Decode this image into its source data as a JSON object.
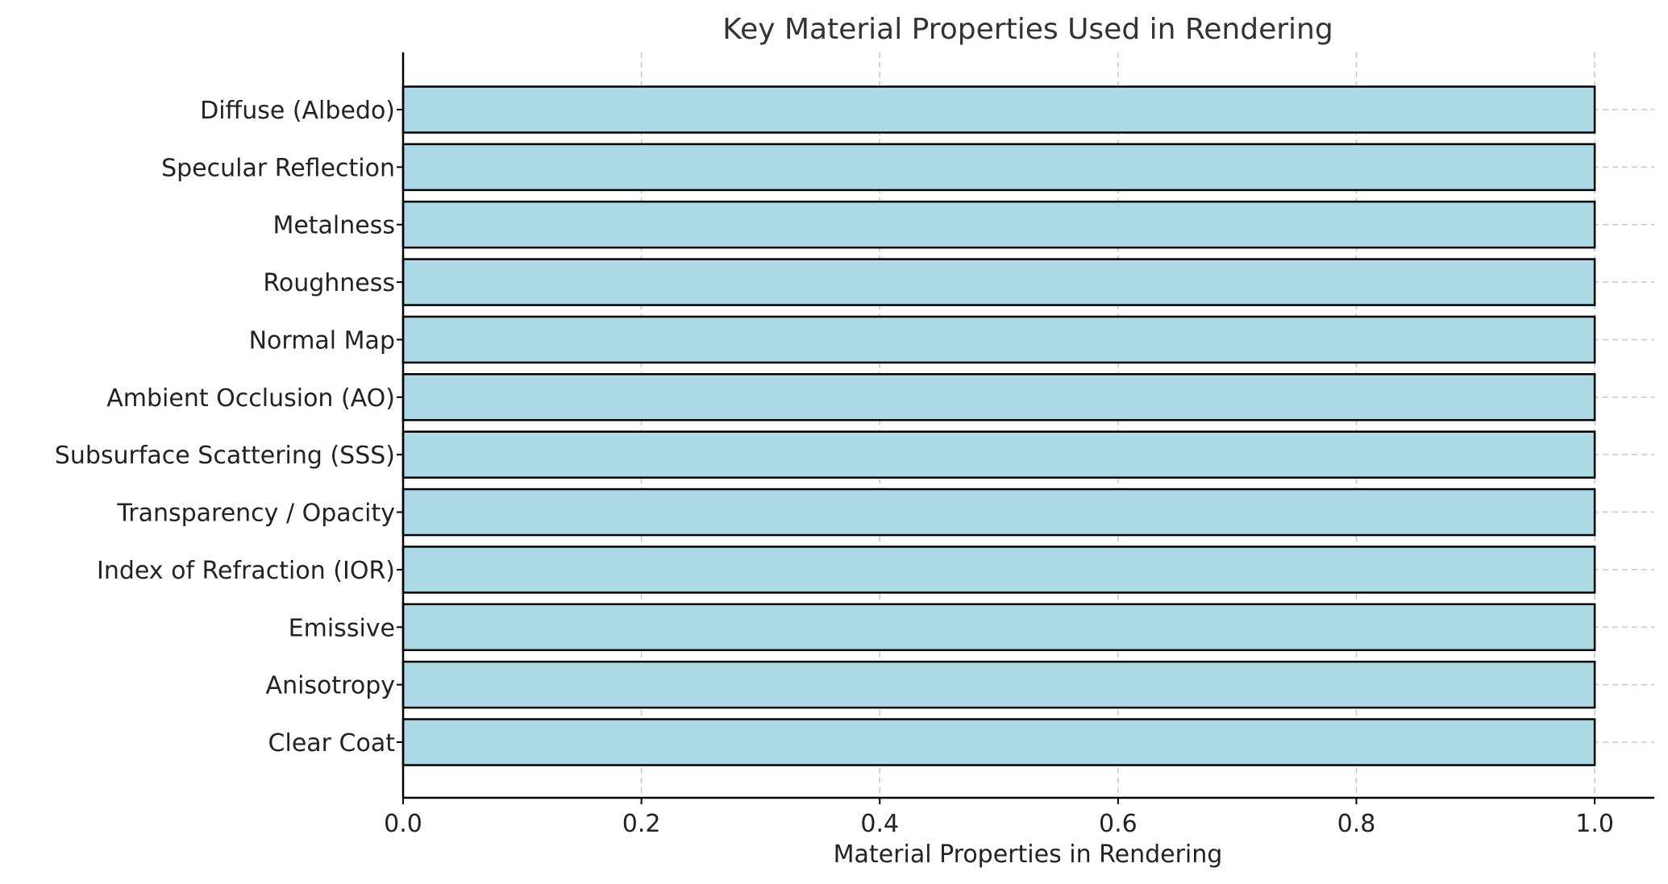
{
  "chart_data": {
    "type": "bar",
    "orientation": "horizontal",
    "title": "Key Material Properties Used in Rendering",
    "xlabel": "Material Properties in Rendering",
    "ylabel": "",
    "categories": [
      "Diffuse (Albedo)",
      "Specular Reflection",
      "Metalness",
      "Roughness",
      "Normal Map",
      "Ambient Occlusion (AO)",
      "Subsurface Scattering (SSS)",
      "Transparency / Opacity",
      "Index of Refraction (IOR)",
      "Emissive",
      "Anisotropy",
      "Clear Coat"
    ],
    "values": [
      1,
      1,
      1,
      1,
      1,
      1,
      1,
      1,
      1,
      1,
      1,
      1
    ],
    "xlim": [
      0,
      1.05
    ],
    "xticks": [
      "0.0",
      "0.2",
      "0.4",
      "0.6",
      "0.8",
      "1.0"
    ],
    "grid": true,
    "bar_color": "#add8e6",
    "edge_color": "#000000"
  }
}
